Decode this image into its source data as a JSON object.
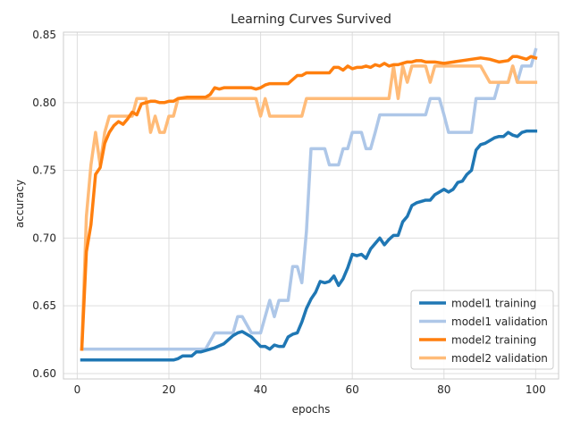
{
  "chart_data": {
    "type": "line",
    "title": "Learning Curves Survived",
    "xlabel": "epochs",
    "ylabel": "accuracy",
    "xlim": [
      -3,
      105
    ],
    "ylim": [
      0.596,
      0.852
    ],
    "xticks": [
      0,
      20,
      40,
      60,
      80,
      100
    ],
    "xtick_labels": [
      "0",
      "20",
      "40",
      "60",
      "80",
      "100"
    ],
    "yticks": [
      0.6,
      0.65,
      0.7,
      0.75,
      0.8,
      0.85
    ],
    "ytick_labels": [
      "0.60",
      "0.65",
      "0.70",
      "0.75",
      "0.80",
      "0.85"
    ],
    "grid": true,
    "legend_position": "lower-right",
    "series": [
      {
        "name": "model1 training",
        "color": "#1f77b4",
        "x": [
          1,
          2,
          5,
          10,
          15,
          20,
          21,
          22,
          23,
          25,
          26,
          27,
          28,
          30,
          32,
          34,
          35,
          36,
          38,
          40,
          41,
          42,
          43,
          44,
          45,
          46,
          47,
          48,
          49,
          50,
          51,
          52,
          53,
          54,
          55,
          56,
          57,
          58,
          59,
          60,
          61,
          62,
          63,
          64,
          65,
          66,
          67,
          68,
          69,
          70,
          71,
          72,
          73,
          74,
          75,
          76,
          77,
          78,
          79,
          80,
          81,
          82,
          83,
          84,
          85,
          86,
          87,
          88,
          89,
          90,
          91,
          92,
          93,
          94,
          95,
          96,
          97,
          98,
          99,
          100
        ],
        "values": [
          0.61,
          0.61,
          0.61,
          0.61,
          0.61,
          0.61,
          0.61,
          0.611,
          0.613,
          0.613,
          0.616,
          0.616,
          0.617,
          0.619,
          0.622,
          0.628,
          0.63,
          0.631,
          0.627,
          0.62,
          0.62,
          0.618,
          0.621,
          0.62,
          0.62,
          0.627,
          0.629,
          0.63,
          0.638,
          0.648,
          0.655,
          0.66,
          0.668,
          0.667,
          0.668,
          0.672,
          0.665,
          0.67,
          0.678,
          0.688,
          0.687,
          0.688,
          0.685,
          0.692,
          0.696,
          0.7,
          0.695,
          0.699,
          0.702,
          0.702,
          0.712,
          0.716,
          0.724,
          0.726,
          0.727,
          0.728,
          0.728,
          0.732,
          0.734,
          0.736,
          0.734,
          0.736,
          0.741,
          0.742,
          0.747,
          0.75,
          0.765,
          0.769,
          0.77,
          0.772,
          0.774,
          0.775,
          0.775,
          0.778,
          0.776,
          0.775,
          0.778,
          0.779,
          0.779,
          0.779
        ]
      },
      {
        "name": "model1 validation",
        "color": "#aec7e8",
        "x": [
          1,
          2,
          5,
          10,
          15,
          20,
          25,
          26,
          27,
          28,
          30,
          32,
          34,
          35,
          36,
          38,
          40,
          41,
          42,
          43,
          44,
          45,
          46,
          47,
          48,
          49,
          50,
          51,
          52,
          53,
          54,
          55,
          56,
          57,
          58,
          59,
          60,
          61,
          62,
          63,
          64,
          65,
          66,
          67,
          68,
          69,
          70,
          71,
          72,
          73,
          74,
          75,
          76,
          77,
          78,
          79,
          80,
          81,
          82,
          83,
          84,
          85,
          86,
          87,
          88,
          89,
          90,
          91,
          92,
          93,
          94,
          95,
          96,
          97,
          98,
          99,
          100
        ],
        "values": [
          0.618,
          0.618,
          0.618,
          0.618,
          0.618,
          0.618,
          0.618,
          0.618,
          0.618,
          0.618,
          0.63,
          0.63,
          0.63,
          0.642,
          0.642,
          0.63,
          0.63,
          0.642,
          0.654,
          0.642,
          0.654,
          0.654,
          0.654,
          0.679,
          0.679,
          0.667,
          0.705,
          0.766,
          0.766,
          0.766,
          0.766,
          0.754,
          0.754,
          0.754,
          0.766,
          0.766,
          0.778,
          0.778,
          0.778,
          0.766,
          0.766,
          0.778,
          0.791,
          0.791,
          0.791,
          0.791,
          0.791,
          0.791,
          0.791,
          0.791,
          0.791,
          0.791,
          0.791,
          0.803,
          0.803,
          0.803,
          0.791,
          0.778,
          0.778,
          0.778,
          0.778,
          0.778,
          0.778,
          0.803,
          0.803,
          0.803,
          0.803,
          0.803,
          0.815,
          0.815,
          0.815,
          0.827,
          0.815,
          0.827,
          0.827,
          0.827,
          0.839
        ]
      },
      {
        "name": "model2 training",
        "color": "#ff7f0e",
        "x": [
          1,
          2,
          3,
          4,
          5,
          6,
          7,
          8,
          9,
          10,
          11,
          12,
          13,
          14,
          15,
          16,
          17,
          18,
          19,
          20,
          21,
          22,
          24,
          26,
          28,
          29,
          30,
          31,
          32,
          34,
          36,
          38,
          39,
          40,
          41,
          42,
          44,
          46,
          48,
          49,
          50,
          52,
          55,
          56,
          57,
          58,
          59,
          60,
          61,
          62,
          63,
          64,
          65,
          66,
          67,
          68,
          69,
          70,
          71,
          72,
          73,
          74,
          75,
          76,
          77,
          78,
          80,
          82,
          84,
          86,
          88,
          90,
          92,
          94,
          95,
          96,
          97,
          98,
          99,
          100
        ],
        "values": [
          0.618,
          0.69,
          0.71,
          0.747,
          0.752,
          0.77,
          0.778,
          0.783,
          0.786,
          0.784,
          0.788,
          0.793,
          0.791,
          0.799,
          0.8,
          0.801,
          0.801,
          0.8,
          0.8,
          0.801,
          0.801,
          0.803,
          0.804,
          0.804,
          0.804,
          0.806,
          0.811,
          0.81,
          0.811,
          0.811,
          0.811,
          0.811,
          0.81,
          0.811,
          0.813,
          0.814,
          0.814,
          0.814,
          0.82,
          0.82,
          0.822,
          0.822,
          0.822,
          0.826,
          0.826,
          0.824,
          0.827,
          0.825,
          0.826,
          0.826,
          0.827,
          0.826,
          0.828,
          0.827,
          0.829,
          0.827,
          0.828,
          0.828,
          0.829,
          0.83,
          0.83,
          0.831,
          0.831,
          0.83,
          0.83,
          0.83,
          0.829,
          0.83,
          0.831,
          0.832,
          0.833,
          0.832,
          0.83,
          0.831,
          0.834,
          0.834,
          0.833,
          0.832,
          0.834,
          0.833
        ]
      },
      {
        "name": "model2 validation",
        "color": "#ffbb78",
        "x": [
          1,
          2,
          3,
          4,
          5,
          6,
          7,
          8,
          9,
          10,
          11,
          12,
          13,
          14,
          15,
          16,
          17,
          18,
          19,
          20,
          21,
          22,
          25,
          30,
          35,
          39,
          40,
          41,
          42,
          45,
          48,
          49,
          50,
          52,
          55,
          60,
          65,
          68,
          69,
          70,
          71,
          72,
          73,
          74,
          75,
          76,
          77,
          78,
          80,
          82,
          84,
          86,
          88,
          90,
          92,
          94,
          95,
          96,
          97,
          98,
          100
        ],
        "values": [
          0.618,
          0.716,
          0.754,
          0.778,
          0.754,
          0.778,
          0.79,
          0.79,
          0.79,
          0.79,
          0.79,
          0.79,
          0.803,
          0.803,
          0.803,
          0.778,
          0.79,
          0.778,
          0.778,
          0.79,
          0.79,
          0.803,
          0.803,
          0.803,
          0.803,
          0.803,
          0.79,
          0.803,
          0.79,
          0.79,
          0.79,
          0.79,
          0.803,
          0.803,
          0.803,
          0.803,
          0.803,
          0.803,
          0.827,
          0.803,
          0.827,
          0.815,
          0.827,
          0.827,
          0.827,
          0.827,
          0.815,
          0.827,
          0.827,
          0.827,
          0.827,
          0.827,
          0.827,
          0.815,
          0.815,
          0.815,
          0.827,
          0.815,
          0.815,
          0.815,
          0.815
        ]
      }
    ]
  }
}
